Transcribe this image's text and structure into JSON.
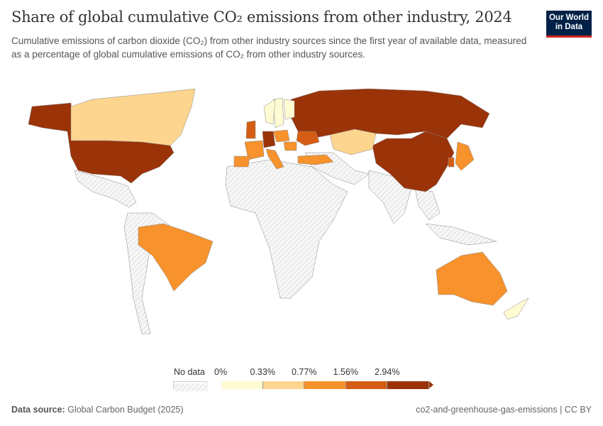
{
  "header": {
    "title": "Share of global cumulative CO₂ emissions from other industry, 2024",
    "subtitle": "Cumulative emissions of carbon dioxide (CO₂) from other industry sources since the first year of available data, measured as a percentage of global cumulative emissions of CO₂ from other industry sources.",
    "logo_text": "Our World in Data"
  },
  "legend": {
    "no_data_label": "No data",
    "bin_labels": [
      "0%",
      "0.33%",
      "0.77%",
      "1.56%",
      "2.94%"
    ],
    "bin_colors": [
      "#fefad2",
      "#fdd58e",
      "#f7922c",
      "#d55d13",
      "#9b3309"
    ],
    "no_data_color": "hatched-gray"
  },
  "map_data": {
    "United States": 4,
    "Russia": 4,
    "China": 4,
    "Canada": 1,
    "Kazakhstan": 1,
    "Brazil": 2,
    "Australia": 2,
    "Japan": 2,
    "South Korea": 3,
    "Turkey": 2,
    "France": 2,
    "Germany": 4,
    "United Kingdom": 3,
    "Italy": 2,
    "Spain": 2,
    "Poland": 2,
    "Ukraine": 3,
    "Romania": 2,
    "Sweden": 0,
    "Finland": 0,
    "Norway": 0,
    "New Zealand": 0
  },
  "footer": {
    "source_label": "Data source:",
    "source_value": "Global Carbon Budget (2025)",
    "right_text": "co2-and-greenhouse-gas-emissions | CC BY"
  }
}
